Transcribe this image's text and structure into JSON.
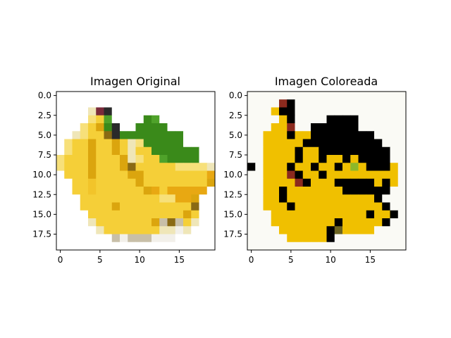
{
  "figure": {
    "panels": [
      {
        "id": "original",
        "title": "Imagen Original",
        "icon": "banana-pixel-image",
        "xticks": [
          0,
          5,
          10,
          15
        ],
        "yticks": [
          0.0,
          2.5,
          5.0,
          7.5,
          10.0,
          12.5,
          15.0,
          17.5
        ],
        "palette": {
          "W": "#ffffff",
          "w": "#f2f0ea",
          "y": "#f5cf38",
          "Y": "#f2c42a",
          "o": "#e8a812",
          "O": "#dba50e",
          "b": "#8a6a14",
          "l": "#f7e07a",
          "c": "#efe6b8",
          "g": "#3a8a1a",
          "G": "#4fa22a",
          "d": "#2a2a2a",
          "r": "#7a2a3a",
          "t": "#c8bfa8"
        },
        "pixels": [
          "WWWWWWWWWWWWWWWWWWWW",
          "WWWWWWWWWWWWWWWWWWWW",
          "WWWWcrdWWWWWWWWWWWWW",
          "WWWWlyGWWWWgGWWWWWWW",
          "WWWlyOgdWWggggWWWWWW",
          "WWclyybdggggggggWWWW",
          "WlyyOyyOyclgggggWWWW",
          "WlyyOyyOycyyggggggWW",
          "lyyyOyyyOclyyGggggWW",
          "lyyyOyyyObyyyyyllllc",
          "WyyyOyyyyOOyyyyyyyyo",
          "WWyyYyyyyyOyyyyyyyyO",
          "WWyyYyyyyyyOoyoooooW",
          "WWWyyyyyyyyyyllooOWW",
          "WWWyyyyOyyyyyyyyybWW",
          "WWWWyyyyyyyyyyyyOyWW",
          "WWWWcyyyyyyyOtbtycWW",
          "WWWWWcyyyyyyyccwcWWW",
          "WWWWWWWtwtttwwwWWWWW",
          "WWWWWWWWWWWWWWWWWWWW"
        ]
      },
      {
        "id": "colored",
        "title": "Imagen Coloreada",
        "icon": "banana-colored-pixel-image",
        "xticks": [
          0,
          5,
          10,
          15
        ],
        "yticks": [
          0.0,
          2.5,
          5.0,
          7.5,
          10.0,
          12.5,
          15.0,
          17.5
        ],
        "palette": {
          "W": "#fafaf5",
          "Y": "#f0c000",
          "K": "#000000",
          "R": "#8b2a1e",
          "O": "#6b6320",
          "G": "#8cb82a"
        },
        "pixels": [
          "WWWWWWWWWWWWWWWWWWWW",
          "WWWWRKWWWWWWWWWWWWWW",
          "WWWYKKWWWWWWWWWWWWWW",
          "WWWWYKWWWWKKKKWWWWWW",
          "WWWYYRWWKKKKKKWWWWWW",
          "WWYYYKYYKKKKKKKKWWWW",
          "WWYYYYYKKKKKKKKKKWWW",
          "WWYYYYKYYKKKKKKKKKWW",
          "WWYYYYKYYKYYKYKKKKWW",
          "KWYYYKYYKYYKYGYKKKYW",
          "WWYYYRKYYKYYYYYYYYYW",
          "WWYYYYRKYYYKKKKKYKYW",
          "WWYYKYYYYYYYKKKKKKWW",
          "WWYYKYYYYYYYYYYYKWWW",
          "WWYYYKYYYYYYYYYYYKWW",
          "WWWYYYYYYYYYYYYKYYKW",
          "WWWYYYYYYYYKYYYYYKWW",
          "WWWWYYYYYYKOYYYYWWWW",
          "WWWWWYYYYYKWWWWWWWWW",
          "WWWWWWWWWWWWWWWWWWWW"
        ]
      }
    ]
  }
}
